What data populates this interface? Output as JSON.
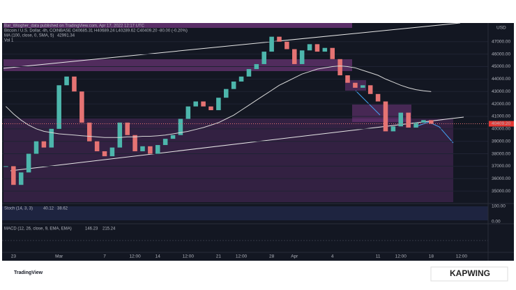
{
  "header": {
    "publisher": "Bar_Wiogher_data published on TradingView.com, Apr 17, 2022 12:17 UTC",
    "symbol_line": "Bitcoin / U.S. Dollar, 4h, COINBASE  O40685.31 H40689.24 L40289.62 C40409.20 -80.00 (-0.20%)",
    "ma_label": "MA (100, close, 0, SMA, 5)",
    "ma_value": "42991.34",
    "vol": "Vol 1"
  },
  "chart_data": {
    "type": "candlestick",
    "categories": [
      null,
      "23",
      null,
      null,
      null,
      null,
      null,
      "Mar",
      null,
      null,
      null,
      null,
      null,
      "7",
      null,
      null,
      null,
      "12:00",
      null,
      null,
      "14",
      null,
      null,
      null,
      "12:00",
      null,
      null,
      null,
      "21",
      null,
      null,
      "12:00",
      null,
      null,
      null,
      "28",
      null,
      null,
      "Apr",
      null,
      null,
      null,
      null,
      "4",
      null,
      null,
      null,
      null,
      null,
      "11",
      null,
      null,
      "12:00",
      null,
      null,
      null,
      "18",
      null,
      null,
      null,
      "12:00",
      null,
      null,
      null
    ],
    "values": [
      37000,
      35500,
      36500,
      38000,
      39000,
      38500,
      40000,
      43500,
      44200,
      43000,
      40500,
      39000,
      38200,
      37800,
      38500,
      40500,
      39500,
      38200,
      38600,
      38000,
      38700,
      39200,
      39500,
      40800,
      41800,
      42200,
      41800,
      41500,
      42500,
      43200,
      43800,
      44200,
      44800,
      45200,
      46200,
      47400,
      47000,
      46400,
      45200,
      46300,
      46800,
      46200,
      46500,
      45600,
      44300,
      43700,
      43300,
      43500,
      42800,
      42200,
      39800,
      40200,
      41300,
      40100,
      40500,
      40700,
      40409.2,
      null,
      null,
      null,
      null,
      null,
      null,
      null
    ],
    "ma_values": [
      41800,
      41200,
      40700,
      40300,
      40000,
      39800,
      39700,
      39600,
      39550,
      39500,
      39450,
      39400,
      39350,
      39300,
      39300,
      39300,
      39350,
      39350,
      39400,
      39400,
      39450,
      39500,
      39600,
      39700,
      39800,
      39950,
      40100,
      40300,
      40500,
      40800,
      41100,
      41500,
      41900,
      42300,
      42700,
      43100,
      43500,
      43800,
      44100,
      44400,
      44600,
      44800,
      44900,
      45000,
      45050,
      45000,
      44900,
      44700,
      44500,
      44300,
      44000,
      43750,
      43500,
      43300,
      43150,
      43050,
      42991.34,
      null,
      null,
      null,
      null,
      null,
      null,
      null
    ],
    "up_color": "#4db6ac",
    "down_color": "#e57373",
    "ma_color": "#d8d8d8",
    "ylim": [
      34000,
      48500
    ],
    "yticks": [
      {
        "value": 47000,
        "label": "47000.00"
      },
      {
        "value": 46000,
        "label": "46000.00"
      },
      {
        "value": 45000,
        "label": "45000.00"
      },
      {
        "value": 44000,
        "label": "44000.00"
      },
      {
        "value": 43000,
        "label": "43000.00"
      },
      {
        "value": 42000,
        "label": "42000.00"
      },
      {
        "value": 41000,
        "label": "41000.00"
      },
      {
        "value": 40000,
        "label": "40000.00"
      },
      {
        "value": 39000,
        "label": "39000.00"
      },
      {
        "value": 38000,
        "label": "38000.00"
      },
      {
        "value": 37000,
        "label": "37000.00"
      },
      {
        "value": 36000,
        "label": "36000.00"
      },
      {
        "value": 35000,
        "label": "35000.00"
      }
    ],
    "currency": "USD",
    "last": {
      "value": 40409.2,
      "label": "40409.20"
    }
  },
  "stoch": {
    "label": "Stoch (14, 3, 3)",
    "k": "40.12",
    "d": "38.62",
    "top": "100.00",
    "bottom": "0.00"
  },
  "macd": {
    "label": "MACD (12, 26, close, 9, EMA, EMA)",
    "v1": "146.23",
    "v2": "215.24"
  },
  "footer": {
    "brand": "TradingView",
    "watermark": "KAPWING"
  }
}
